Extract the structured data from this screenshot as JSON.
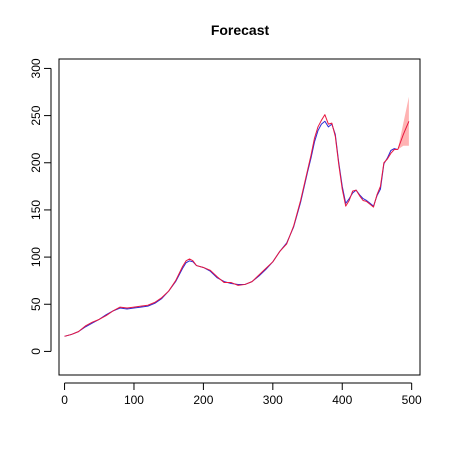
{
  "chart_data": {
    "type": "line",
    "title": "Forecast",
    "xlabel": "",
    "ylabel": "",
    "xlim": [
      -8,
      512
    ],
    "ylim": [
      -25,
      310
    ],
    "x_ticks": [
      0,
      100,
      200,
      300,
      400,
      500
    ],
    "y_ticks": [
      0,
      50,
      100,
      150,
      200,
      250,
      300
    ],
    "grid": false,
    "series": [
      {
        "role": "fitted",
        "color": "#2b2bd6",
        "x": [
          0,
          10,
          20,
          30,
          40,
          50,
          60,
          70,
          80,
          90,
          100,
          110,
          120,
          130,
          140,
          150,
          160,
          170,
          175,
          180,
          185,
          190,
          200,
          210,
          220,
          230,
          240,
          250,
          260,
          270,
          280,
          290,
          300,
          310,
          320,
          330,
          340,
          350,
          355,
          360,
          365,
          370,
          375,
          380,
          385,
          390,
          395,
          400,
          405,
          410,
          415,
          420,
          425,
          430,
          435,
          440,
          445,
          450,
          455,
          460,
          465,
          470,
          475,
          480
        ],
        "y": [
          16,
          18,
          21,
          26,
          30,
          34,
          39,
          43,
          46,
          45,
          46,
          47,
          48,
          51,
          56,
          64,
          74,
          88,
          94,
          96,
          95,
          91,
          89,
          85,
          78,
          74,
          72,
          71,
          71,
          74,
          80,
          87,
          95,
          106,
          115,
          132,
          158,
          190,
          205,
          222,
          234,
          241,
          244,
          238,
          241,
          230,
          200,
          175,
          157,
          162,
          168,
          171,
          166,
          162,
          160,
          157,
          154,
          165,
          172,
          199,
          205,
          213,
          215,
          214
        ]
      },
      {
        "role": "observed",
        "color": "#e8173f",
        "x": [
          0,
          10,
          20,
          30,
          40,
          50,
          60,
          70,
          80,
          90,
          100,
          110,
          120,
          130,
          140,
          150,
          160,
          170,
          175,
          180,
          185,
          190,
          200,
          210,
          220,
          230,
          240,
          250,
          260,
          270,
          280,
          290,
          300,
          310,
          320,
          330,
          340,
          350,
          355,
          360,
          365,
          370,
          375,
          380,
          385,
          390,
          395,
          400,
          405,
          410,
          415,
          420,
          425,
          430,
          435,
          440,
          445,
          450,
          455,
          460,
          465,
          470,
          475,
          480
        ],
        "y": [
          16,
          18,
          21,
          27,
          31,
          34,
          38,
          43,
          47,
          46,
          47,
          48,
          49,
          52,
          57,
          64,
          75,
          90,
          96,
          98,
          96,
          91,
          89,
          86,
          79,
          73,
          73,
          70,
          71,
          74,
          81,
          88,
          95,
          106,
          114,
          133,
          160,
          192,
          208,
          226,
          238,
          245,
          251,
          241,
          242,
          228,
          198,
          172,
          154,
          160,
          170,
          171,
          165,
          160,
          159,
          156,
          153,
          166,
          175,
          200,
          204,
          210,
          214,
          214
        ]
      },
      {
        "role": "forecast",
        "color": "#e8173f",
        "x": [
          480,
          484,
          488,
          492,
          496
        ],
        "y": [
          214,
          222,
          230,
          237,
          244
        ]
      }
    ],
    "forecast_band": {
      "color": "#ffb3b3",
      "x": [
        480,
        484,
        488,
        492,
        496
      ],
      "upper": [
        214,
        228,
        242,
        256,
        270
      ],
      "lower": [
        214,
        216,
        218,
        218,
        218
      ]
    }
  }
}
